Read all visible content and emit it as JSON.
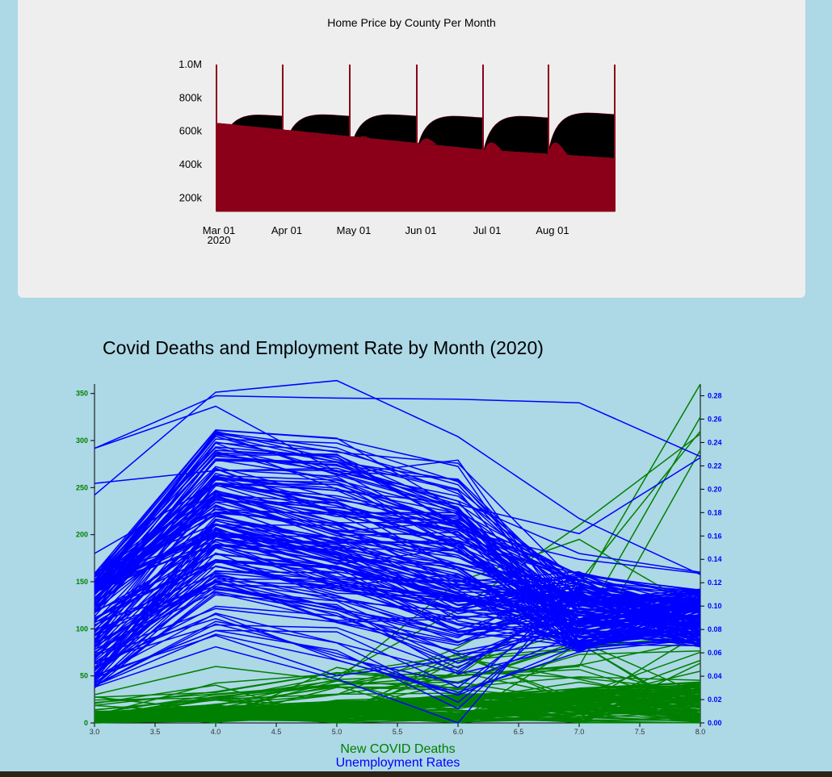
{
  "chart_data": [
    {
      "type": "area",
      "title": "Home Price by County Per Month",
      "y_ticks": [
        "200k",
        "400k",
        "600k",
        "800k",
        "1.0M"
      ],
      "x_ticks": [
        "Mar 01",
        "Apr 01",
        "May 01",
        "Jun 01",
        "Jul 01",
        "Aug 01"
      ],
      "x_sublabel": "2020",
      "ylim": [
        120000,
        1000000
      ],
      "months": [
        "2020-03-01",
        "2020-04-01",
        "2020-05-01",
        "2020-06-01",
        "2020-07-01",
        "2020-08-01"
      ],
      "series": [
        {
          "values_start": [
            650000,
            610000,
            570000,
            530000,
            490000,
            465000
          ],
          "values_end": [
            610000,
            570000,
            530000,
            490000,
            465000,
            440000
          ]
        },
        {
          "curve_start": [
            380000,
            450000,
            460000,
            475000,
            460000,
            470000
          ],
          "curve_peak": [
            700000,
            700000,
            700000,
            690000,
            690000,
            710000
          ]
        }
      ],
      "colors": {
        "fill": "#8b0018",
        "shadow": "#000000",
        "line": "#8b0018"
      }
    },
    {
      "type": "line",
      "title": "Covid Deaths and Employment Rate by Month (2020)",
      "x_ticks": [
        "3.0",
        "3.5",
        "4.0",
        "4.5",
        "5.0",
        "5.5",
        "6.0",
        "6.5",
        "7.0",
        "7.5",
        "8.0"
      ],
      "y_left_ticks": [
        "0",
        "50",
        "100",
        "150",
        "200",
        "250",
        "300",
        "350"
      ],
      "y_right_ticks": [
        "0.00",
        "0.02",
        "0.04",
        "0.06",
        "0.08",
        "0.10",
        "0.12",
        "0.14",
        "0.16",
        "0.18",
        "0.20",
        "0.22",
        "0.24",
        "0.26",
        "0.28"
      ],
      "xlim": [
        3,
        8
      ],
      "ylim_left": [
        0,
        360
      ],
      "ylim_right": [
        0,
        0.29
      ],
      "x": [
        3,
        4,
        5,
        6,
        7,
        8
      ],
      "legend": [
        "New COVID Deaths",
        "Unemployment Rates"
      ],
      "colors": {
        "deaths": "#008000",
        "unemployment": "#0000ff"
      },
      "deaths_highlight": [
        [
          5,
          20,
          30,
          50,
          140,
          360
        ],
        [
          10,
          30,
          40,
          60,
          100,
          325
        ],
        [
          8,
          25,
          50,
          120,
          210,
          307
        ],
        [
          2,
          15,
          30,
          80,
          150,
          310
        ],
        [
          30,
          60,
          45,
          150,
          195,
          120
        ],
        [
          5,
          25,
          40,
          50,
          60,
          290
        ]
      ],
      "unemployment_highlight": [
        [
          0.195,
          0.283,
          0.293,
          0.245,
          0.175,
          0.127
        ],
        [
          0.235,
          0.28,
          0.278,
          0.277,
          0.274,
          0.228
        ],
        [
          0.235,
          0.271,
          0.215,
          0.19,
          0.145,
          0.129
        ],
        [
          0.205,
          0.216,
          0.218,
          0.187,
          0.162,
          0.227
        ],
        [
          0.145,
          0.205,
          0.18,
          0.165,
          0.14,
          0.128
        ]
      ]
    }
  ]
}
